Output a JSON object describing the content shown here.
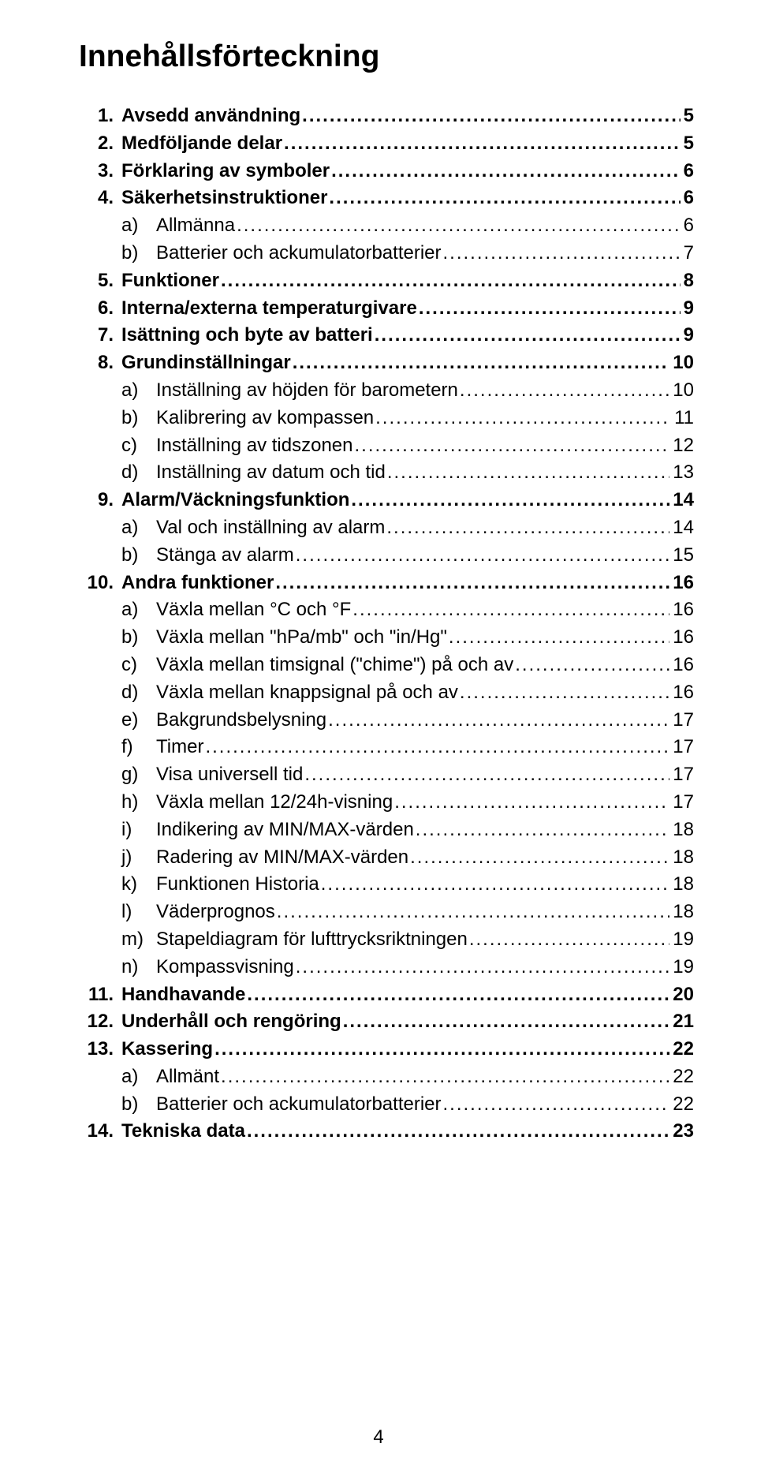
{
  "title": "Innehållsförteckning",
  "page_number": "4",
  "toc": [
    {
      "num": "1.",
      "sub": "",
      "label": "Avsedd användning",
      "page": "5",
      "bold": true
    },
    {
      "num": "2.",
      "sub": "",
      "label": "Medföljande delar",
      "page": "5",
      "bold": true
    },
    {
      "num": "3.",
      "sub": "",
      "label": "Förklaring av symboler",
      "page": "6",
      "bold": true
    },
    {
      "num": "4.",
      "sub": "",
      "label": "Säkerhetsinstruktioner",
      "page": "6",
      "bold": true
    },
    {
      "num": "",
      "sub": "a)",
      "label": "Allmänna",
      "page": "6",
      "bold": false
    },
    {
      "num": "",
      "sub": "b)",
      "label": "Batterier och ackumulatorbatterier",
      "page": "7",
      "bold": false
    },
    {
      "num": "5.",
      "sub": "",
      "label": "Funktioner",
      "page": "8",
      "bold": true
    },
    {
      "num": "6.",
      "sub": "",
      "label": "Interna/externa temperaturgivare",
      "page": "9",
      "bold": true
    },
    {
      "num": "7.",
      "sub": "",
      "label": "Isättning och byte av batteri",
      "page": "9",
      "bold": true
    },
    {
      "num": "8.",
      "sub": "",
      "label": "Grundinställningar",
      "page": "10",
      "bold": true
    },
    {
      "num": "",
      "sub": "a)",
      "label": "Inställning av höjden för barometern",
      "page": "10",
      "bold": false
    },
    {
      "num": "",
      "sub": "b)",
      "label": "Kalibrering av kompassen",
      "page": "11",
      "bold": false
    },
    {
      "num": "",
      "sub": "c)",
      "label": "Inställning av tidszonen",
      "page": "12",
      "bold": false
    },
    {
      "num": "",
      "sub": "d)",
      "label": "Inställning av datum och tid",
      "page": "13",
      "bold": false
    },
    {
      "num": "9.",
      "sub": "",
      "label": "Alarm/Väckningsfunktion",
      "page": "14",
      "bold": true
    },
    {
      "num": "",
      "sub": "a)",
      "label": "Val och inställning av alarm",
      "page": "14",
      "bold": false
    },
    {
      "num": "",
      "sub": "b)",
      "label": "Stänga av alarm",
      "page": "15",
      "bold": false
    },
    {
      "num": "10.",
      "sub": "",
      "label": "Andra funktioner",
      "page": "16",
      "bold": true
    },
    {
      "num": "",
      "sub": "a)",
      "label": "Växla mellan °C och °F",
      "page": "16",
      "bold": false
    },
    {
      "num": "",
      "sub": "b)",
      "label": "Växla mellan \"hPa/mb\" och \"in/Hg\"",
      "page": "16",
      "bold": false
    },
    {
      "num": "",
      "sub": "c)",
      "label": "Växla mellan timsignal (\"chime\") på och av",
      "page": "16",
      "bold": false
    },
    {
      "num": "",
      "sub": "d)",
      "label": "Växla mellan knappsignal på och av",
      "page": "16",
      "bold": false
    },
    {
      "num": "",
      "sub": "e)",
      "label": "Bakgrundsbelysning",
      "page": "17",
      "bold": false
    },
    {
      "num": "",
      "sub": "f)",
      "label": "Timer",
      "page": "17",
      "bold": false
    },
    {
      "num": "",
      "sub": "g)",
      "label": "Visa universell tid",
      "page": "17",
      "bold": false
    },
    {
      "num": "",
      "sub": "h)",
      "label": "Växla mellan 12/24h-visning",
      "page": "17",
      "bold": false
    },
    {
      "num": "",
      "sub": "i)",
      "label": "Indikering av MIN/MAX-värden",
      "page": "18",
      "bold": false
    },
    {
      "num": "",
      "sub": "j)",
      "label": "Radering av MIN/MAX-värden",
      "page": "18",
      "bold": false
    },
    {
      "num": "",
      "sub": "k)",
      "label": "Funktionen Historia",
      "page": "18",
      "bold": false
    },
    {
      "num": "",
      "sub": "l)",
      "label": "Väderprognos",
      "page": "18",
      "bold": false
    },
    {
      "num": "",
      "sub": "m)",
      "label": "Stapeldiagram för lufttrycksriktningen",
      "page": "19",
      "bold": false
    },
    {
      "num": "",
      "sub": "n)",
      "label": "Kompassvisning",
      "page": "19",
      "bold": false
    },
    {
      "num": "11.",
      "sub": "",
      "label": "Handhavande",
      "page": "20",
      "bold": true
    },
    {
      "num": "12.",
      "sub": "",
      "label": "Underhåll och rengöring",
      "page": "21",
      "bold": true
    },
    {
      "num": "13.",
      "sub": "",
      "label": "Kassering",
      "page": "22",
      "bold": true
    },
    {
      "num": "",
      "sub": "a)",
      "label": "Allmänt",
      "page": "22",
      "bold": false
    },
    {
      "num": "",
      "sub": "b)",
      "label": "Batterier och ackumulatorbatterier",
      "page": "22",
      "bold": false
    },
    {
      "num": "14.",
      "sub": "",
      "label": "Tekniska data",
      "page": "23",
      "bold": true
    }
  ]
}
